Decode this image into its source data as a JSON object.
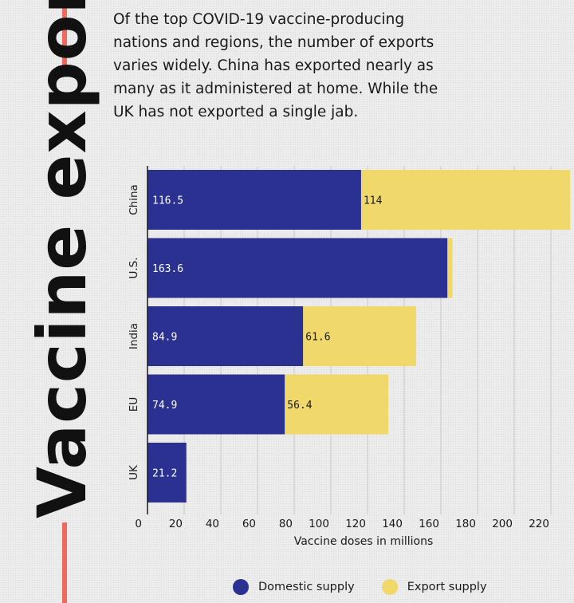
{
  "title": "Vaccine exports",
  "description": "Of the top COVID-19 vaccine-producing nations and regions, the number of exports varies widely. China has exported nearly as many as it administered at home. While the UK has not exported a single jab.",
  "colors": {
    "domestic": "#2a3190",
    "export": "#f1d86a",
    "accent": "#ee6a5e"
  },
  "chart_data": {
    "type": "bar",
    "orientation": "horizontal",
    "stacked": true,
    "categories": [
      "China",
      "U.S.",
      "India",
      "EU",
      "UK"
    ],
    "series": [
      {
        "name": "Domestic supply",
        "values": [
          116.5,
          163.6,
          84.9,
          74.9,
          21.2
        ],
        "labels": [
          "116.5",
          "163.6",
          "84.9",
          "74.9",
          "21.2"
        ]
      },
      {
        "name": "Export supply",
        "values": [
          114,
          2.7,
          61.6,
          56.4,
          0
        ],
        "labels": [
          "114",
          "",
          "61.6",
          "56.4",
          ""
        ]
      }
    ],
    "xticks": [
      0,
      20,
      40,
      60,
      80,
      100,
      120,
      140,
      160,
      180,
      200,
      220
    ],
    "xlabel": "Vaccine doses in millions",
    "xlim": [
      0,
      230
    ],
    "legend_position": "bottom"
  }
}
